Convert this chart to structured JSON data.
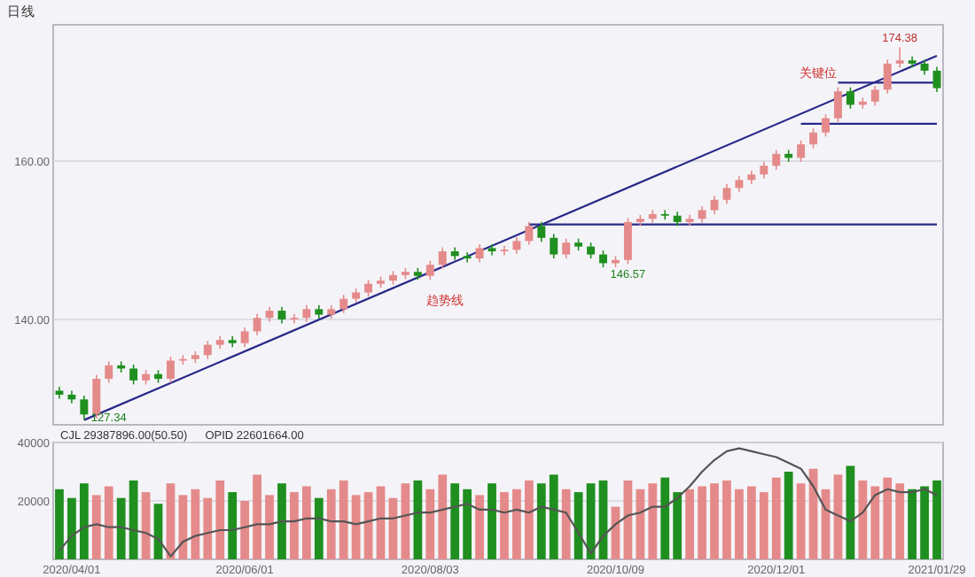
{
  "chart_data": [
    {
      "type": "candlestick",
      "title": "日线",
      "categories": [
        null,
        null,
        null,
        null,
        null,
        null,
        null,
        null,
        null,
        null,
        null,
        null,
        null,
        null,
        null,
        null,
        null,
        null,
        null,
        null,
        null,
        null,
        null,
        null,
        null,
        null,
        null,
        null,
        null,
        null,
        null,
        null,
        null,
        null,
        null,
        null,
        null,
        null,
        null,
        null,
        null,
        null,
        null,
        null,
        null,
        null,
        null,
        null,
        null,
        null,
        null,
        null,
        null,
        null,
        null,
        null,
        null,
        null,
        null,
        null,
        null,
        null,
        null,
        null,
        null,
        null,
        null,
        null,
        null,
        null,
        null,
        null
      ],
      "ohlc": [
        [
          131.0,
          131.5,
          130.0,
          130.5
        ],
        [
          130.5,
          131.0,
          129.4,
          129.9
        ],
        [
          129.9,
          130.4,
          127.34,
          128.0
        ],
        [
          128.0,
          133.0,
          127.5,
          132.5
        ],
        [
          132.5,
          134.7,
          132.0,
          134.2
        ],
        [
          134.2,
          134.7,
          133.3,
          133.8
        ],
        [
          133.8,
          134.3,
          131.8,
          132.3
        ],
        [
          132.3,
          133.6,
          131.8,
          133.1
        ],
        [
          133.1,
          133.6,
          132.0,
          132.5
        ],
        [
          132.5,
          135.3,
          132.0,
          134.8
        ],
        [
          134.8,
          135.5,
          134.3,
          135.0
        ],
        [
          135.0,
          136.0,
          134.5,
          135.5
        ],
        [
          135.5,
          137.3,
          135.0,
          136.8
        ],
        [
          136.8,
          137.9,
          136.3,
          137.4
        ],
        [
          137.4,
          137.9,
          136.5,
          137.0
        ],
        [
          137.0,
          139.0,
          136.5,
          138.5
        ],
        [
          138.5,
          140.7,
          138.0,
          140.2
        ],
        [
          140.2,
          141.6,
          139.7,
          141.1
        ],
        [
          141.1,
          141.6,
          139.5,
          140.0
        ],
        [
          140.0,
          140.7,
          139.5,
          140.2
        ],
        [
          140.2,
          141.8,
          139.7,
          141.3
        ],
        [
          141.3,
          141.8,
          140.1,
          140.6
        ],
        [
          140.6,
          141.8,
          140.1,
          141.3
        ],
        [
          141.3,
          143.1,
          140.8,
          142.6
        ],
        [
          142.6,
          143.9,
          142.1,
          143.4
        ],
        [
          143.4,
          145.0,
          142.9,
          144.5
        ],
        [
          144.5,
          145.4,
          144.0,
          144.9
        ],
        [
          144.9,
          146.1,
          144.4,
          145.6
        ],
        [
          145.6,
          146.5,
          145.1,
          146.0
        ],
        [
          146.0,
          146.5,
          145.0,
          145.5
        ],
        [
          145.5,
          147.4,
          145.0,
          146.9
        ],
        [
          146.9,
          149.1,
          146.4,
          148.6
        ],
        [
          148.6,
          149.1,
          147.5,
          148.0
        ],
        [
          148.0,
          148.5,
          147.2,
          147.7
        ],
        [
          147.7,
          149.5,
          147.2,
          149.0
        ],
        [
          149.0,
          149.5,
          148.1,
          148.6
        ],
        [
          148.6,
          149.3,
          148.1,
          148.8
        ],
        [
          148.8,
          150.4,
          148.3,
          149.9
        ],
        [
          149.9,
          152.3,
          149.4,
          151.8
        ],
        [
          151.8,
          152.3,
          149.8,
          150.3
        ],
        [
          150.3,
          150.8,
          147.7,
          148.2
        ],
        [
          148.2,
          150.2,
          147.7,
          149.7
        ],
        [
          149.7,
          150.2,
          148.7,
          149.2
        ],
        [
          149.2,
          149.7,
          147.7,
          148.2
        ],
        [
          148.2,
          148.7,
          146.57,
          147.1
        ],
        [
          147.1,
          148.0,
          146.6,
          147.5
        ],
        [
          147.5,
          152.8,
          147.0,
          152.3
        ],
        [
          152.3,
          153.2,
          151.8,
          152.7
        ],
        [
          152.7,
          153.8,
          152.2,
          153.3
        ],
        [
          153.3,
          153.8,
          152.6,
          153.1
        ],
        [
          153.1,
          153.6,
          151.8,
          152.3
        ],
        [
          152.3,
          153.2,
          151.8,
          152.7
        ],
        [
          152.7,
          154.3,
          152.2,
          153.8
        ],
        [
          153.8,
          155.6,
          153.3,
          155.1
        ],
        [
          155.1,
          157.1,
          154.6,
          156.6
        ],
        [
          156.6,
          158.1,
          156.1,
          157.6
        ],
        [
          157.6,
          158.8,
          157.1,
          158.3
        ],
        [
          158.3,
          159.9,
          157.8,
          159.4
        ],
        [
          159.4,
          161.4,
          158.9,
          160.9
        ],
        [
          160.9,
          161.4,
          159.9,
          160.4
        ],
        [
          160.4,
          162.6,
          159.9,
          162.1
        ],
        [
          162.1,
          164.1,
          161.6,
          163.6
        ],
        [
          163.6,
          165.9,
          163.1,
          165.4
        ],
        [
          165.4,
          169.3,
          164.9,
          168.8
        ],
        [
          168.8,
          169.3,
          166.6,
          167.1
        ],
        [
          167.1,
          168.0,
          166.6,
          167.5
        ],
        [
          167.5,
          169.5,
          167.0,
          169.0
        ],
        [
          169.0,
          172.8,
          168.5,
          172.3
        ],
        [
          172.3,
          174.38,
          171.8,
          172.7
        ],
        [
          172.7,
          173.2,
          171.8,
          172.3
        ],
        [
          172.3,
          172.8,
          170.9,
          171.4
        ],
        [
          171.4,
          171.9,
          168.7,
          169.2
        ]
      ],
      "colors": [
        "#1f8f1f",
        "#1f8f1f",
        "#1f8f1f",
        "#e58a8a",
        "#e58a8a",
        "#1f8f1f",
        "#1f8f1f",
        "#e58a8a",
        "#1f8f1f",
        "#e58a8a",
        "#e58a8a",
        "#e58a8a",
        "#e58a8a",
        "#e58a8a",
        "#1f8f1f",
        "#e58a8a",
        "#e58a8a",
        "#e58a8a",
        "#1f8f1f",
        "#e58a8a",
        "#e58a8a",
        "#1f8f1f",
        "#e58a8a",
        "#e58a8a",
        "#e58a8a",
        "#e58a8a",
        "#e58a8a",
        "#e58a8a",
        "#e58a8a",
        "#1f8f1f",
        "#e58a8a",
        "#e58a8a",
        "#1f8f1f",
        "#1f8f1f",
        "#e58a8a",
        "#1f8f1f",
        "#e58a8a",
        "#e58a8a",
        "#e58a8a",
        "#1f8f1f",
        "#1f8f1f",
        "#e58a8a",
        "#1f8f1f",
        "#1f8f1f",
        "#1f8f1f",
        "#e58a8a",
        "#e58a8a",
        "#e58a8a",
        "#e58a8a",
        "#1f8f1f",
        "#1f8f1f",
        "#e58a8a",
        "#e58a8a",
        "#e58a8a",
        "#e58a8a",
        "#e58a8a",
        "#e58a8a",
        "#e58a8a",
        "#e58a8a",
        "#1f8f1f",
        "#e58a8a",
        "#e58a8a",
        "#e58a8a",
        "#e58a8a",
        "#1f8f1f",
        "#e58a8a",
        "#e58a8a",
        "#e58a8a",
        "#e58a8a",
        "#1f8f1f",
        "#1f8f1f",
        "#1f8f1f"
      ],
      "series": [
        {
          "type": "line",
          "color": "#28288a",
          "values": [
            null,
            null,
            127.3,
            null,
            null,
            null,
            null,
            null,
            null,
            null,
            null,
            null,
            null,
            null,
            null,
            null,
            null,
            null,
            null,
            null,
            null,
            null,
            null,
            null,
            null,
            null,
            null,
            null,
            null,
            null,
            null,
            null,
            null,
            null,
            null,
            null,
            null,
            null,
            null,
            null,
            null,
            null,
            null,
            null,
            null,
            null,
            null,
            null,
            null,
            null,
            null,
            null,
            null,
            null,
            null,
            null,
            null,
            null,
            null,
            null,
            null,
            null,
            null,
            null,
            null,
            null,
            null,
            null,
            null,
            null,
            null,
            173.3
          ]
        },
        {
          "type": "line",
          "color": "#28288a",
          "values": [
            null,
            null,
            null,
            null,
            null,
            null,
            null,
            null,
            null,
            null,
            null,
            null,
            null,
            null,
            null,
            null,
            null,
            null,
            null,
            null,
            null,
            null,
            null,
            null,
            null,
            null,
            null,
            null,
            null,
            null,
            null,
            null,
            null,
            null,
            null,
            null,
            null,
            null,
            152.0,
            152.0,
            152.0,
            152.0,
            152.0,
            152.0,
            152.0,
            152.0,
            152.0,
            152.0,
            152.0,
            152.0,
            152.0,
            152.0,
            152.0,
            152.0,
            152.0,
            152.0,
            152.0,
            152.0,
            152.0,
            152.0,
            152.0,
            152.0,
            152.0,
            152.0,
            152.0,
            152.0,
            152.0,
            152.0,
            152.0,
            152.0,
            152.0,
            152.0
          ]
        },
        {
          "type": "line",
          "color": "#28288a",
          "values": [
            null,
            null,
            null,
            null,
            null,
            null,
            null,
            null,
            null,
            null,
            null,
            null,
            null,
            null,
            null,
            null,
            null,
            null,
            null,
            null,
            null,
            null,
            null,
            null,
            null,
            null,
            null,
            null,
            null,
            null,
            null,
            null,
            null,
            null,
            null,
            null,
            null,
            null,
            null,
            null,
            null,
            null,
            null,
            null,
            null,
            null,
            null,
            null,
            null,
            null,
            null,
            null,
            null,
            null,
            null,
            null,
            null,
            null,
            null,
            null,
            164.7,
            164.7,
            164.7,
            164.7,
            164.7,
            164.7,
            164.7,
            164.7,
            164.7,
            164.7,
            164.7,
            164.7
          ]
        },
        {
          "type": "line",
          "color": "#28288a",
          "values": [
            null,
            null,
            null,
            null,
            null,
            null,
            null,
            null,
            null,
            null,
            null,
            null,
            null,
            null,
            null,
            null,
            null,
            null,
            null,
            null,
            null,
            null,
            null,
            null,
            null,
            null,
            null,
            null,
            null,
            null,
            null,
            null,
            null,
            null,
            null,
            null,
            null,
            null,
            null,
            null,
            null,
            null,
            null,
            null,
            null,
            null,
            null,
            null,
            null,
            null,
            null,
            null,
            null,
            null,
            null,
            null,
            null,
            null,
            null,
            null,
            null,
            null,
            null,
            169.9,
            169.9,
            169.9,
            169.9,
            169.9,
            169.9,
            169.9,
            169.9,
            169.9
          ]
        }
      ],
      "ylim": [
        126.7,
        177.2
      ],
      "yticks": [
        {
          "value": 140,
          "label": "140.00"
        },
        {
          "value": 160,
          "label": "160.00"
        }
      ],
      "grid": "y",
      "tick_labels": "y",
      "annotations": [
        {
          "text": "174.38",
          "y": 174.38
        },
        {
          "text": "146.57",
          "y": 146.57
        },
        {
          "text": "127.34",
          "y": 127.34
        },
        "趋势线",
        "关键位"
      ]
    },
    {
      "type": "bar",
      "categories": [
        null,
        "2020/04/01",
        null,
        null,
        null,
        null,
        null,
        null,
        null,
        null,
        null,
        null,
        null,
        null,
        null,
        "2020/06/01",
        null,
        null,
        null,
        null,
        null,
        null,
        null,
        null,
        null,
        null,
        null,
        null,
        null,
        null,
        "2020/08/03",
        null,
        null,
        null,
        null,
        null,
        null,
        null,
        null,
        null,
        null,
        null,
        null,
        null,
        null,
        "2020/10/09",
        null,
        null,
        null,
        null,
        null,
        null,
        null,
        null,
        null,
        null,
        null,
        null,
        "2020/12/01",
        null,
        null,
        null,
        null,
        null,
        null,
        null,
        null,
        null,
        null,
        null,
        null,
        "2021/01/29"
      ],
      "series": [
        {
          "type": "bar",
          "colors": [
            "#1f8f1f",
            "#1f8f1f",
            "#1f8f1f",
            "#e58a8a",
            "#e58a8a",
            "#1f8f1f",
            "#1f8f1f",
            "#e58a8a",
            "#1f8f1f",
            "#e58a8a",
            "#e58a8a",
            "#e58a8a",
            "#e58a8a",
            "#e58a8a",
            "#1f8f1f",
            "#e58a8a",
            "#e58a8a",
            "#e58a8a",
            "#1f8f1f",
            "#e58a8a",
            "#e58a8a",
            "#1f8f1f",
            "#e58a8a",
            "#e58a8a",
            "#e58a8a",
            "#e58a8a",
            "#e58a8a",
            "#e58a8a",
            "#e58a8a",
            "#1f8f1f",
            "#e58a8a",
            "#e58a8a",
            "#1f8f1f",
            "#1f8f1f",
            "#e58a8a",
            "#1f8f1f",
            "#e58a8a",
            "#e58a8a",
            "#e58a8a",
            "#1f8f1f",
            "#1f8f1f",
            "#e58a8a",
            "#1f8f1f",
            "#1f8f1f",
            "#1f8f1f",
            "#e58a8a",
            "#e58a8a",
            "#e58a8a",
            "#e58a8a",
            "#1f8f1f",
            "#1f8f1f",
            "#e58a8a",
            "#e58a8a",
            "#e58a8a",
            "#e58a8a",
            "#e58a8a",
            "#e58a8a",
            "#e58a8a",
            "#e58a8a",
            "#1f8f1f",
            "#e58a8a",
            "#e58a8a",
            "#e58a8a",
            "#e58a8a",
            "#1f8f1f",
            "#e58a8a",
            "#e58a8a",
            "#e58a8a",
            "#e58a8a",
            "#1f8f1f",
            "#1f8f1f",
            "#1f8f1f"
          ],
          "values": [
            24000,
            21000,
            26000,
            22000,
            25000,
            21000,
            27000,
            23000,
            19000,
            26000,
            22000,
            24000,
            21000,
            27000,
            23000,
            20000,
            29000,
            22000,
            26000,
            23000,
            25000,
            21000,
            24000,
            27000,
            22000,
            23000,
            25000,
            21000,
            26000,
            27000,
            24000,
            29000,
            26000,
            24000,
            22000,
            26000,
            23000,
            24000,
            27000,
            26000,
            29000,
            24000,
            23000,
            26000,
            27000,
            18000,
            27000,
            24000,
            26000,
            28000,
            23000,
            24000,
            25000,
            26000,
            27000,
            24000,
            25000,
            23000,
            28000,
            30000,
            26000,
            31000,
            24000,
            29000,
            32000,
            27000,
            25000,
            28000,
            26000,
            24000,
            25000,
            27000
          ]
        },
        {
          "type": "line",
          "color": "#555555",
          "values": [
            3000,
            8000,
            11000,
            12000,
            11000,
            11000,
            10000,
            9000,
            7000,
            1000,
            6000,
            8000,
            9000,
            10000,
            10000,
            11000,
            12000,
            12000,
            13000,
            13000,
            14000,
            14000,
            13000,
            13000,
            12000,
            13000,
            14000,
            14000,
            15000,
            16000,
            16000,
            17000,
            18000,
            19000,
            17000,
            17000,
            16000,
            17000,
            16000,
            18000,
            17000,
            16000,
            9000,
            2000,
            8000,
            12000,
            15000,
            16000,
            18000,
            18000,
            21000,
            25000,
            30000,
            34000,
            37000,
            38000,
            37000,
            36000,
            35000,
            33000,
            31000,
            25000,
            17000,
            15000,
            13000,
            16000,
            22000,
            24000,
            23000,
            23000,
            24000,
            22000
          ]
        }
      ],
      "ylim": [
        0,
        40000
      ],
      "yticks": [
        20000,
        40000
      ],
      "grid": "y",
      "annotations": [
        "CJL 29387896.00(50.50)",
        "OPID 22601664.00"
      ]
    }
  ]
}
